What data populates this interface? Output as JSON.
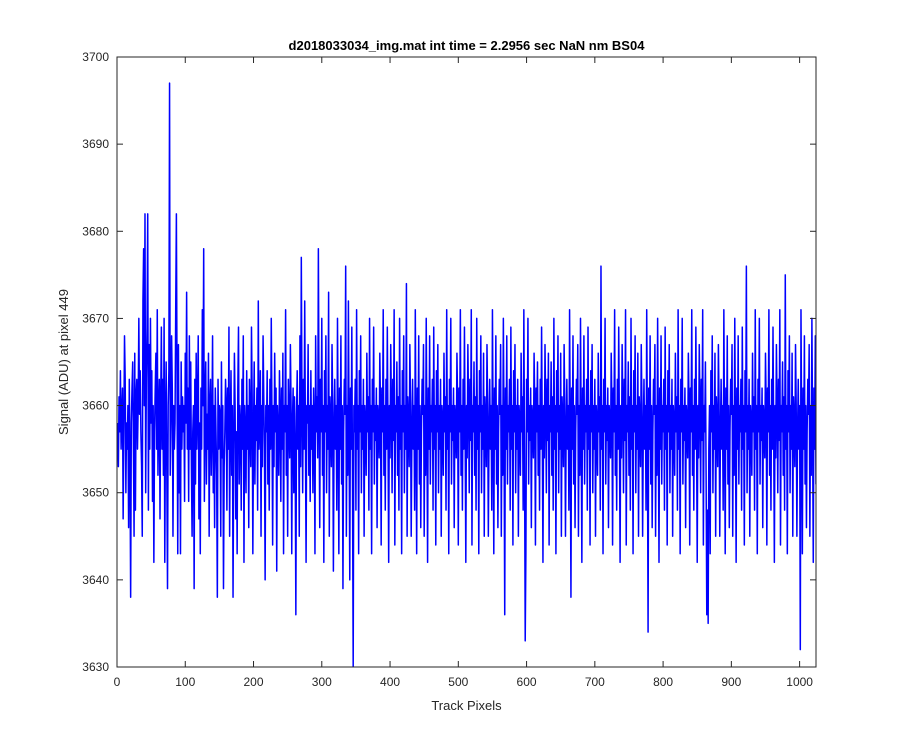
{
  "chart_data": {
    "type": "line",
    "title": "d2018033034_img.mat int time = 2.2956 sec  NaN nm BS04",
    "xlabel": "Track Pixels",
    "ylabel": "Signal (ADU) at pixel 449",
    "xlim": [
      0,
      1024
    ],
    "ylim": [
      3630,
      3700
    ],
    "xticks": [
      0,
      100,
      200,
      300,
      400,
      500,
      600,
      700,
      800,
      900,
      1000
    ],
    "yticks": [
      3630,
      3640,
      3650,
      3660,
      3670,
      3680,
      3690,
      3700
    ],
    "grid": false,
    "legend": "none",
    "series": [
      {
        "color": "#0000ff",
        "x_start": 1,
        "x_step": 1,
        "values": [
          3658,
          3653,
          3661,
          3657,
          3664,
          3655,
          3659,
          3662,
          3647,
          3657,
          3668,
          3663,
          3650,
          3658,
          3655,
          3660,
          3646,
          3663,
          3654,
          3638,
          3658,
          3662,
          3665,
          3656,
          3645,
          3666,
          3648,
          3661,
          3663,
          3655,
          3660,
          3670,
          3659,
          3664,
          3657,
          3653,
          3645,
          3672,
          3678,
          3660,
          3682,
          3650,
          3663,
          3669,
          3682,
          3648,
          3667,
          3655,
          3670,
          3658,
          3664,
          3649,
          3660,
          3642,
          3657,
          3662,
          3666,
          3655,
          3671,
          3652,
          3659,
          3663,
          3647,
          3660,
          3669,
          3655,
          3663,
          3652,
          3670,
          3642,
          3658,
          3665,
          3652,
          3639,
          3660,
          3664,
          3697,
          3652,
          3658,
          3668,
          3662,
          3645,
          3660,
          3655,
          3658,
          3671,
          3682,
          3662,
          3643,
          3667,
          3650,
          3660,
          3643,
          3665,
          3655,
          3661,
          3657,
          3660,
          3649,
          3666,
          3658,
          3673,
          3655,
          3662,
          3649,
          3668,
          3655,
          3665,
          3653,
          3645,
          3657,
          3660,
          3639,
          3663,
          3651,
          3666,
          3655,
          3660,
          3668,
          3647,
          3658,
          3643,
          3662,
          3655,
          3671,
          3660,
          3678,
          3649,
          3660,
          3665,
          3651,
          3659,
          3655,
          3666,
          3645,
          3660,
          3663,
          3652,
          3657,
          3668,
          3650,
          3660,
          3646,
          3662,
          3657,
          3652,
          3638,
          3663,
          3655,
          3660,
          3659,
          3645,
          3665,
          3654,
          3660,
          3639,
          3653,
          3657,
          3663,
          3660,
          3648,
          3662,
          3655,
          3669,
          3645,
          3658,
          3664,
          3652,
          3660,
          3638,
          3655,
          3666,
          3660,
          3647,
          3657,
          3643,
          3662,
          3669,
          3651,
          3660,
          3658,
          3648,
          3663,
          3655,
          3668,
          3642,
          3660,
          3657,
          3650,
          3664,
          3655,
          3660,
          3646,
          3663,
          3658,
          3653,
          3669,
          3661,
          3643,
          3657,
          3665,
          3651,
          3660,
          3656,
          3662,
          3648,
          3672,
          3655,
          3658,
          3664,
          3645,
          3660,
          3653,
          3668,
          3661,
          3655,
          3640,
          3660,
          3657,
          3664,
          3651,
          3660,
          3648,
          3663,
          3655,
          3670,
          3659,
          3644,
          3660,
          3653,
          3666,
          3657,
          3662,
          3641,
          3660,
          3657,
          3652,
          3664,
          3659,
          3649,
          3662,
          3655,
          3666,
          3643,
          3660,
          3657,
          3671,
          3652,
          3660,
          3645,
          3663,
          3658,
          3654,
          3667,
          3660,
          3643,
          3658,
          3662,
          3650,
          3661,
          3655,
          3636,
          3659,
          3664,
          3655,
          3660,
          3645,
          3668,
          3653,
          3677,
          3660,
          3650,
          3663,
          3655,
          3672,
          3657,
          3642,
          3660,
          3658,
          3667,
          3652,
          3660,
          3649,
          3664,
          3655,
          3660,
          3650,
          3662,
          3658,
          3643,
          3668,
          3657,
          3661,
          3654,
          3678,
          3660,
          3646,
          3663,
          3657,
          3670,
          3652,
          3660,
          3642,
          3664,
          3657,
          3668,
          3650,
          3660,
          3655,
          3673,
          3645,
          3661,
          3658,
          3653,
          3667,
          3660,
          3641,
          3657,
          3663,
          3655,
          3660,
          3648,
          3670,
          3657,
          3643,
          3662,
          3655,
          3668,
          3651,
          3660,
          3639,
          3657,
          3663,
          3659,
          3676,
          3645,
          3660,
          3652,
          3672,
          3657,
          3640,
          3662,
          3655,
          3669,
          3651,
          3630,
          3660,
          3657,
          3663,
          3648,
          3671,
          3655,
          3660,
          3643,
          3664,
          3657,
          3668,
          3650,
          3660,
          3655,
          3663,
          3645,
          3660,
          3658,
          3652,
          3666,
          3657,
          3661,
          3648,
          3670,
          3655,
          3660,
          3643,
          3663,
          3657,
          3669,
          3651,
          3660,
          3656,
          3662,
          3646,
          3660,
          3658,
          3654,
          3666,
          3660,
          3644,
          3662,
          3657,
          3671,
          3652,
          3660,
          3648,
          3663,
          3655,
          3669,
          3657,
          3642,
          3660,
          3654,
          3667,
          3660,
          3650,
          3663,
          3656,
          3671,
          3644,
          3660,
          3657,
          3665,
          3652,
          3661,
          3648,
          3670,
          3655,
          3660,
          3643,
          3664,
          3657,
          3668,
          3650,
          3660,
          3655,
          3674,
          3645,
          3661,
          3658,
          3653,
          3667,
          3660,
          3645,
          3657,
          3663,
          3655,
          3660,
          3648,
          3671,
          3657,
          3643,
          3662,
          3655,
          3668,
          3651,
          3660,
          3646,
          3657,
          3663,
          3659,
          3667,
          3645,
          3660,
          3652,
          3670,
          3657,
          3642,
          3662,
          3655,
          3668,
          3651,
          3660,
          3657,
          3663,
          3648,
          3669,
          3655,
          3660,
          3644,
          3664,
          3657,
          3667,
          3650,
          3660,
          3655,
          3663,
          3645,
          3660,
          3658,
          3652,
          3666,
          3657,
          3661,
          3648,
          3671,
          3655,
          3660,
          3643,
          3663,
          3657,
          3670,
          3651,
          3660,
          3656,
          3662,
          3646,
          3660,
          3658,
          3654,
          3666,
          3660,
          3644,
          3662,
          3657,
          3671,
          3652,
          3660,
          3648,
          3663,
          3655,
          3669,
          3657,
          3642,
          3660,
          3654,
          3667,
          3660,
          3650,
          3663,
          3656,
          3671,
          3644,
          3660,
          3657,
          3665,
          3652,
          3661,
          3648,
          3670,
          3655,
          3660,
          3643,
          3664,
          3657,
          3668,
          3650,
          3660,
          3655,
          3666,
          3645,
          3661,
          3658,
          3653,
          3667,
          3660,
          3645,
          3657,
          3663,
          3655,
          3660,
          3648,
          3671,
          3657,
          3643,
          3662,
          3655,
          3668,
          3651,
          3660,
          3646,
          3657,
          3663,
          3659,
          3667,
          3645,
          3660,
          3652,
          3670,
          3657,
          3636,
          3662,
          3655,
          3668,
          3651,
          3660,
          3657,
          3663,
          3648,
          3669,
          3655,
          3660,
          3644,
          3664,
          3657,
          3667,
          3650,
          3660,
          3655,
          3663,
          3645,
          3660,
          3658,
          3652,
          3666,
          3657,
          3661,
          3648,
          3671,
          3655,
          3633,
          3643,
          3663,
          3657,
          3670,
          3651,
          3660,
          3656,
          3662,
          3646,
          3660,
          3658,
          3654,
          3666,
          3660,
          3644,
          3662,
          3657,
          3665,
          3652,
          3660,
          3648,
          3663,
          3655,
          3669,
          3657,
          3642,
          3660,
          3654,
          3667,
          3660,
          3650,
          3663,
          3656,
          3666,
          3644,
          3660,
          3657,
          3665,
          3652,
          3661,
          3648,
          3670,
          3655,
          3660,
          3643,
          3664,
          3657,
          3668,
          3650,
          3660,
          3655,
          3666,
          3645,
          3661,
          3658,
          3653,
          3667,
          3660,
          3645,
          3657,
          3663,
          3655,
          3660,
          3648,
          3671,
          3657,
          3638,
          3662,
          3655,
          3668,
          3651,
          3660,
          3646,
          3657,
          3663,
          3659,
          3667,
          3645,
          3660,
          3652,
          3670,
          3657,
          3642,
          3662,
          3655,
          3668,
          3651,
          3660,
          3657,
          3663,
          3648,
          3669,
          3655,
          3660,
          3644,
          3664,
          3657,
          3667,
          3650,
          3660,
          3655,
          3663,
          3645,
          3660,
          3658,
          3652,
          3666,
          3657,
          3661,
          3648,
          3676,
          3655,
          3660,
          3643,
          3663,
          3657,
          3670,
          3651,
          3660,
          3656,
          3662,
          3646,
          3660,
          3658,
          3654,
          3666,
          3660,
          3644,
          3662,
          3657,
          3671,
          3652,
          3660,
          3648,
          3663,
          3655,
          3669,
          3657,
          3642,
          3660,
          3654,
          3667,
          3660,
          3650,
          3663,
          3656,
          3671,
          3644,
          3660,
          3657,
          3665,
          3652,
          3661,
          3648,
          3670,
          3655,
          3660,
          3643,
          3664,
          3657,
          3668,
          3650,
          3660,
          3655,
          3666,
          3645,
          3661,
          3658,
          3653,
          3667,
          3660,
          3645,
          3657,
          3663,
          3655,
          3660,
          3648,
          3671,
          3657,
          3634,
          3662,
          3655,
          3668,
          3651,
          3660,
          3646,
          3657,
          3663,
          3659,
          3667,
          3645,
          3660,
          3652,
          3670,
          3657,
          3642,
          3662,
          3655,
          3668,
          3651,
          3660,
          3657,
          3663,
          3648,
          3669,
          3655,
          3660,
          3644,
          3664,
          3657,
          3667,
          3650,
          3660,
          3655,
          3663,
          3645,
          3660,
          3658,
          3652,
          3666,
          3657,
          3661,
          3648,
          3671,
          3655,
          3660,
          3643,
          3663,
          3657,
          3670,
          3651,
          3660,
          3656,
          3662,
          3646,
          3660,
          3658,
          3654,
          3666,
          3660,
          3644,
          3662,
          3657,
          3671,
          3652,
          3660,
          3648,
          3663,
          3655,
          3669,
          3657,
          3642,
          3660,
          3654,
          3667,
          3660,
          3650,
          3663,
          3656,
          3671,
          3644,
          3660,
          3657,
          3665,
          3652,
          3636,
          3648,
          3635,
          3655,
          3660,
          3643,
          3664,
          3657,
          3668,
          3650,
          3660,
          3655,
          3666,
          3645,
          3661,
          3658,
          3653,
          3667,
          3660,
          3645,
          3657,
          3663,
          3655,
          3660,
          3648,
          3671,
          3657,
          3643,
          3662,
          3655,
          3668,
          3651,
          3660,
          3646,
          3657,
          3663,
          3659,
          3667,
          3645,
          3660,
          3652,
          3670,
          3657,
          3642,
          3662,
          3655,
          3668,
          3651,
          3660,
          3657,
          3663,
          3648,
          3669,
          3655,
          3660,
          3644,
          3664,
          3657,
          3676,
          3650,
          3660,
          3655,
          3663,
          3645,
          3660,
          3658,
          3652,
          3666,
          3657,
          3661,
          3648,
          3671,
          3655,
          3660,
          3643,
          3663,
          3657,
          3670,
          3651,
          3660,
          3656,
          3662,
          3646,
          3660,
          3658,
          3654,
          3666,
          3660,
          3644,
          3662,
          3657,
          3671,
          3652,
          3660,
          3648,
          3663,
          3655,
          3669,
          3657,
          3642,
          3660,
          3654,
          3667,
          3660,
          3650,
          3663,
          3656,
          3671,
          3644,
          3660,
          3657,
          3665,
          3652,
          3661,
          3648,
          3675,
          3655,
          3660,
          3643,
          3664,
          3657,
          3668,
          3650,
          3660,
          3655,
          3666,
          3645,
          3661,
          3658,
          3653,
          3667,
          3660,
          3645,
          3657,
          3663,
          3655,
          3660,
          3632,
          3671,
          3657,
          3643,
          3662,
          3655,
          3668,
          3651,
          3660,
          3646,
          3657,
          3663,
          3659,
          3667,
          3645,
          3660,
          3652,
          3670,
          3657,
          3642,
          3662,
          3655,
          3668,
          3651,
          3660,
          3657,
          3663,
          3648,
          3669,
          3655,
          3660,
          3644,
          3664,
          3657,
          3667,
          3650,
          3660,
          3655,
          3663,
          3645,
          3660,
          3658,
          3652,
          3666,
          3657,
          3661,
          3648,
          3671,
          3655,
          3660,
          3643,
          3663,
          3657,
          3670,
          3651,
          3660,
          3656,
          3662,
          3646,
          3660,
          3658,
          3654,
          3666,
          3660,
          3644,
          3662,
          3657,
          3671,
          3652,
          3660,
          3650,
          3663,
          3655,
          3669,
          3657,
          3650,
          3660,
          3654,
          3667,
          3660,
          3650,
          3663,
          3656,
          3668,
          3645,
          3660,
          3657
        ]
      }
    ]
  }
}
